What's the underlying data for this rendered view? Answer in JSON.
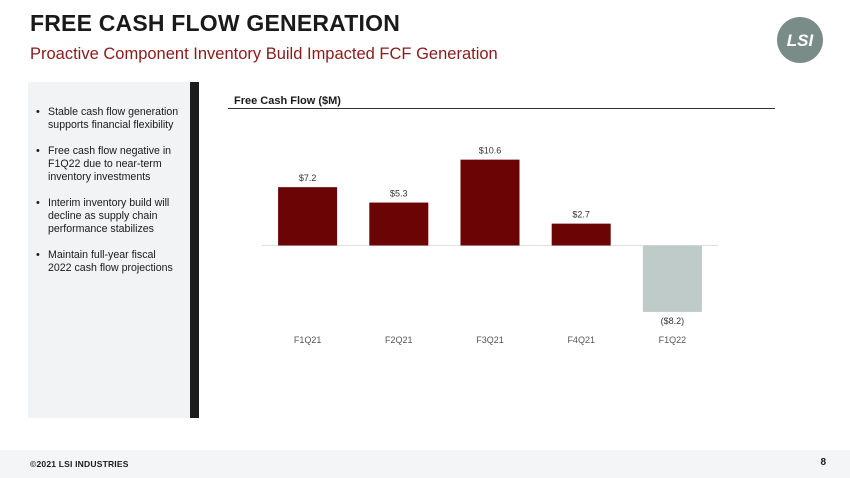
{
  "header": {
    "title": "FREE CASH FLOW GENERATION",
    "subtitle": "Proactive Component Inventory Build Impacted FCF Generation"
  },
  "logo": {
    "text": "LSI",
    "color": "#7a8c87"
  },
  "sidebar": {
    "bullets": [
      "Stable cash flow generation supports financial flexibility",
      "Free cash flow negative in F1Q22 due to near-term inventory investments",
      "Interim inventory build will decline as supply chain performance stabilizes",
      "Maintain full-year fiscal 2022 cash flow projections"
    ]
  },
  "chart_data": {
    "type": "bar",
    "title": "Free Cash Flow ($M)",
    "categories": [
      "F1Q21",
      "F2Q21",
      "F3Q21",
      "F4Q21",
      "F1Q22"
    ],
    "values": [
      7.2,
      5.3,
      10.6,
      2.7,
      -8.2
    ],
    "data_labels": [
      "$7.2",
      "$5.3",
      "$10.6",
      "$2.7",
      "($8.2)"
    ],
    "colors": {
      "positive": "#6b0404",
      "negative": "#bfcbc8"
    },
    "xlabel": "",
    "ylabel": "",
    "ylim": [
      -8.2,
      10.6
    ],
    "grid": false,
    "legend": "none"
  },
  "footer": {
    "copyright": "©2021 LSI INDUSTRIES",
    "page_number": "8"
  }
}
